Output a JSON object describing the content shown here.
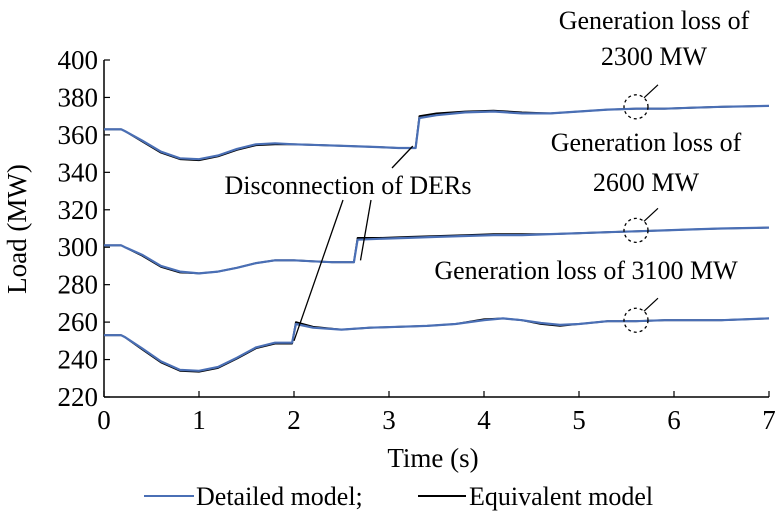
{
  "chart_data": {
    "type": "line",
    "xlabel": "Time (s)",
    "ylabel": "Load (MW)",
    "xlim": [
      0,
      7
    ],
    "ylim": [
      220,
      400
    ],
    "xticks": [
      0,
      1,
      2,
      3,
      4,
      5,
      6,
      7
    ],
    "yticks": [
      220,
      240,
      260,
      280,
      300,
      320,
      340,
      360,
      380,
      400
    ],
    "grid": false,
    "legend_placement": "bottom",
    "legend": [
      {
        "label": "Detailed model;",
        "color": "#4a6fb5"
      },
      {
        "label": "Equivalent model",
        "color": "#000000"
      }
    ],
    "series": [
      {
        "name": "Detailed model",
        "color": "#4a6fb5",
        "curves": [
          {
            "x": [
              0,
              0.18,
              0.22,
              0.4,
              0.6,
              0.8,
              1.0,
              1.2,
              1.4,
              1.6,
              1.8,
              2.0,
              2.3,
              2.6,
              2.9,
              3.1,
              3.28,
              3.32,
              3.5,
              3.8,
              4.1,
              4.4,
              4.7,
              5.0,
              5.3,
              5.6,
              5.9,
              6.2,
              6.5,
              7.0
            ],
            "y": [
              363,
              363,
              362,
              357,
              351,
              347.5,
              347,
              349,
              352.5,
              355,
              355.5,
              355,
              354.5,
              354,
              353.5,
              353,
              353,
              369,
              370.5,
              372,
              372.5,
              371.5,
              371.5,
              372.5,
              373.5,
              374,
              374,
              374.5,
              375,
              375.5
            ]
          },
          {
            "x": [
              0,
              0.18,
              0.22,
              0.4,
              0.6,
              0.8,
              1.0,
              1.2,
              1.4,
              1.6,
              1.8,
              2.0,
              2.2,
              2.4,
              2.63,
              2.67,
              2.9,
              3.2,
              3.5,
              3.8,
              4.1,
              4.4,
              4.7,
              5.0,
              5.3,
              5.6,
              5.9,
              6.2,
              6.5,
              7.0
            ],
            "y": [
              301,
              301,
              300,
              296,
              290,
              287,
              286,
              287,
              289,
              291.5,
              293,
              293,
              292.5,
              292,
              292,
              304,
              304.5,
              305,
              305.5,
              306,
              306.5,
              306.5,
              307,
              307.5,
              308,
              308.5,
              309,
              309.5,
              310,
              310.5
            ]
          },
          {
            "x": [
              0,
              0.18,
              0.22,
              0.4,
              0.6,
              0.8,
              1.0,
              1.2,
              1.4,
              1.6,
              1.8,
              1.98,
              2.02,
              2.2,
              2.5,
              2.8,
              3.1,
              3.4,
              3.7,
              4.0,
              4.2,
              4.4,
              4.6,
              4.8,
              5.0,
              5.3,
              5.6,
              5.9,
              6.2,
              6.5,
              7.0
            ],
            "y": [
              253,
              253,
              252,
              246,
              239,
              234.5,
              234,
              236,
              241,
              246.5,
              249,
              249,
              259,
              257,
              256,
              257,
              257.5,
              258,
              259,
              261,
              262,
              261,
              259.5,
              258.5,
              259,
              260.5,
              260.5,
              261,
              261,
              261,
              262
            ]
          }
        ]
      },
      {
        "name": "Equivalent model",
        "color": "#000000",
        "curves": [
          {
            "x": [
              0,
              0.18,
              0.22,
              0.4,
              0.6,
              0.8,
              1.0,
              1.2,
              1.4,
              1.6,
              1.8,
              2.0,
              2.3,
              2.6,
              2.9,
              3.1,
              3.28,
              3.32,
              3.5,
              3.8,
              4.1,
              4.4,
              4.7,
              5.0,
              5.3,
              5.6,
              5.9,
              6.2,
              6.5,
              7.0
            ],
            "y": [
              363,
              363,
              362,
              356.5,
              350.5,
              347,
              346.5,
              348.5,
              352,
              354.5,
              355,
              355,
              354.5,
              354,
              353.5,
              353,
              353,
              370,
              371.5,
              372.5,
              373,
              372,
              371.5,
              372.5,
              373.5,
              374,
              374,
              374.5,
              375,
              375.5
            ]
          },
          {
            "x": [
              0,
              0.18,
              0.22,
              0.4,
              0.6,
              0.8,
              1.0,
              1.2,
              1.4,
              1.6,
              1.8,
              2.0,
              2.2,
              2.4,
              2.63,
              2.67,
              2.9,
              3.2,
              3.5,
              3.8,
              4.1,
              4.4,
              4.7,
              5.0,
              5.3,
              5.6,
              5.9,
              6.2,
              6.5,
              7.0
            ],
            "y": [
              301,
              301,
              300,
              295.5,
              289.5,
              286.5,
              286,
              287,
              289,
              291.5,
              293,
              293,
              292.5,
              292,
              292,
              305,
              305,
              305.5,
              306,
              306.5,
              307,
              307,
              307,
              307.5,
              308,
              308.5,
              309,
              309.5,
              310,
              310.5
            ]
          },
          {
            "x": [
              0,
              0.18,
              0.22,
              0.4,
              0.6,
              0.8,
              1.0,
              1.2,
              1.4,
              1.6,
              1.8,
              1.98,
              2.02,
              2.2,
              2.5,
              2.8,
              3.1,
              3.4,
              3.7,
              4.0,
              4.2,
              4.4,
              4.6,
              4.8,
              5.0,
              5.3,
              5.6,
              5.9,
              6.2,
              6.5,
              7.0
            ],
            "y": [
              253,
              253,
              252,
              245.5,
              238.5,
              234,
              233.5,
              235.5,
              240.5,
              246,
              248.5,
              248.5,
              260,
              257.5,
              256,
              257,
              257.5,
              258,
              259,
              261.5,
              262,
              261,
              259,
              258,
              259,
              260.5,
              260.5,
              261,
              261,
              261,
              262
            ]
          }
        ]
      }
    ],
    "annotations": [
      {
        "lines": [
          "Generation loss of",
          "2300 MW"
        ],
        "marker": {
          "x": 5.6,
          "y": 375
        }
      },
      {
        "lines": [
          "Generation loss of",
          "2600 MW"
        ],
        "marker": {
          "x": 5.6,
          "y": 309
        }
      },
      {
        "lines": [
          "Generation loss of 3100 MW"
        ],
        "marker": {
          "x": 5.6,
          "y": 261
        }
      },
      {
        "lines": [
          "Disconnection of DERs"
        ],
        "pointers": [
          {
            "x": 3.25,
            "y": 354
          },
          {
            "x": 2.7,
            "y": 293
          },
          {
            "x": 2.0,
            "y": 250
          }
        ]
      }
    ]
  }
}
